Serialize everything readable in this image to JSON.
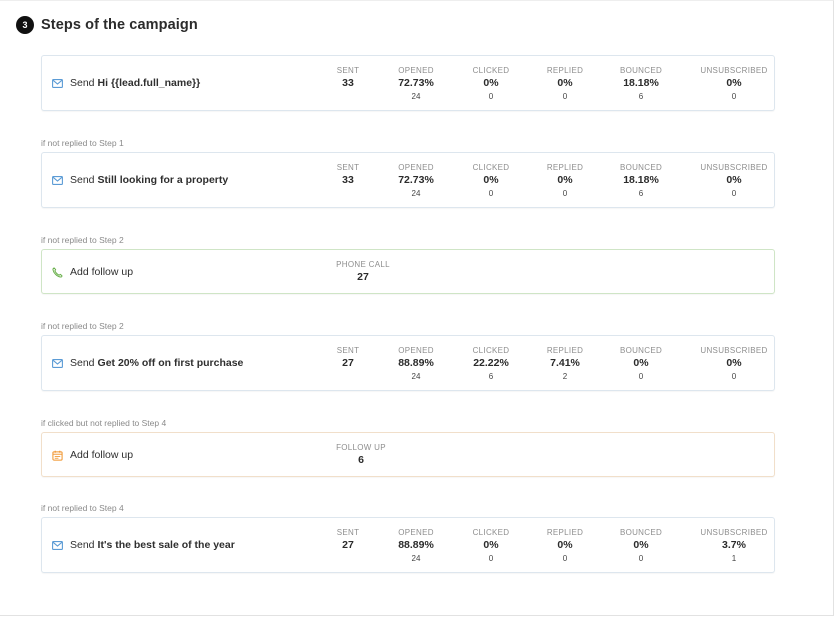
{
  "header": {
    "step_number": "3",
    "title": "Steps of the campaign"
  },
  "steps": [
    {
      "kind": "email",
      "condition": "",
      "action": "Send",
      "subject": "Hi {{lead.full_name}}",
      "stats": [
        {
          "label": "SENT",
          "value": "33",
          "sub": ""
        },
        {
          "label": "OPENED",
          "value": "72.73%",
          "sub": "24"
        },
        {
          "label": "CLICKED",
          "value": "0%",
          "sub": "0"
        },
        {
          "label": "REPLIED",
          "value": "0%",
          "sub": "0"
        },
        {
          "label": "BOUNCED",
          "value": "18.18%",
          "sub": "6"
        },
        {
          "label": "UNSUBSCRIBED",
          "value": "0%",
          "sub": "0"
        }
      ]
    },
    {
      "kind": "email",
      "condition": "if not replied to Step 1",
      "action": "Send",
      "subject": "Still looking for a property",
      "stats": [
        {
          "label": "SENT",
          "value": "33",
          "sub": ""
        },
        {
          "label": "OPENED",
          "value": "72.73%",
          "sub": "24"
        },
        {
          "label": "CLICKED",
          "value": "0%",
          "sub": "0"
        },
        {
          "label": "REPLIED",
          "value": "0%",
          "sub": "0"
        },
        {
          "label": "BOUNCED",
          "value": "18.18%",
          "sub": "6"
        },
        {
          "label": "UNSUBSCRIBED",
          "value": "0%",
          "sub": "0"
        }
      ]
    },
    {
      "kind": "phone",
      "condition": "if not replied to Step 2",
      "action": "Add follow up",
      "stats": [
        {
          "label": "PHONE CALL",
          "value": "27"
        }
      ]
    },
    {
      "kind": "email",
      "condition": "if not replied to Step 2",
      "action": "Send",
      "subject": "Get 20% off on first purchase",
      "stats": [
        {
          "label": "SENT",
          "value": "27",
          "sub": ""
        },
        {
          "label": "OPENED",
          "value": "88.89%",
          "sub": "24"
        },
        {
          "label": "CLICKED",
          "value": "22.22%",
          "sub": "6"
        },
        {
          "label": "REPLIED",
          "value": "7.41%",
          "sub": "2"
        },
        {
          "label": "BOUNCED",
          "value": "0%",
          "sub": "0"
        },
        {
          "label": "UNSUBSCRIBED",
          "value": "0%",
          "sub": "0"
        }
      ]
    },
    {
      "kind": "followup",
      "condition": "if clicked but not replied to Step 4",
      "action": "Add follow up",
      "stats": [
        {
          "label": "FOLLOW UP",
          "value": "6"
        }
      ]
    },
    {
      "kind": "email",
      "condition": "if not replied to Step 4",
      "action": "Send",
      "subject": "It's the best sale of the year",
      "stats": [
        {
          "label": "SENT",
          "value": "27",
          "sub": ""
        },
        {
          "label": "OPENED",
          "value": "88.89%",
          "sub": "24"
        },
        {
          "label": "CLICKED",
          "value": "0%",
          "sub": "0"
        },
        {
          "label": "REPLIED",
          "value": "0%",
          "sub": "0"
        },
        {
          "label": "BOUNCED",
          "value": "0%",
          "sub": "0"
        },
        {
          "label": "UNSUBSCRIBED",
          "value": "3.7%",
          "sub": "1"
        }
      ]
    }
  ],
  "icons": {
    "email": "envelope-icon",
    "phone": "phone-icon",
    "followup": "follow-up-icon"
  },
  "colors": {
    "email_icon": "#5b9bd5",
    "phone_icon": "#6ab04c",
    "followup_icon": "#f0932b"
  }
}
